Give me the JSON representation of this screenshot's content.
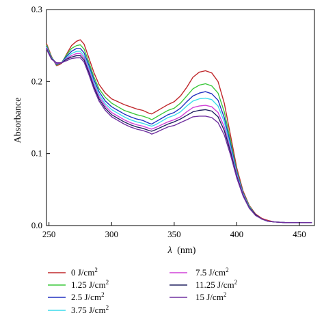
{
  "chart_data": {
    "type": "line",
    "title": "",
    "xlabel_symbol": "λ",
    "xlabel_unit": "(nm)",
    "ylabel": "Absorbance",
    "xlim": [
      248,
      462
    ],
    "ylim": [
      0,
      0.3
    ],
    "xticks": [
      250,
      300,
      350,
      400,
      450
    ],
    "yticks": [
      0.0,
      0.1,
      0.2,
      0.3
    ],
    "ytick_labels": [
      "0.0",
      "0.1",
      "0.2",
      "0.3"
    ],
    "grid": false,
    "legend_position": "bottom",
    "x": [
      248,
      252,
      256,
      260,
      264,
      268,
      272,
      275,
      278,
      282,
      286,
      290,
      295,
      300,
      305,
      310,
      315,
      320,
      325,
      330,
      332,
      335,
      340,
      345,
      350,
      355,
      360,
      365,
      370,
      375,
      380,
      385,
      390,
      395,
      400,
      405,
      410,
      415,
      420,
      425,
      430,
      440,
      450,
      460
    ],
    "series": [
      {
        "name_value": "0 J/cm",
        "name_sup": "2",
        "color": "#c0282c",
        "values": [
          0.253,
          0.235,
          0.222,
          0.225,
          0.238,
          0.25,
          0.256,
          0.258,
          0.252,
          0.232,
          0.212,
          0.196,
          0.184,
          0.176,
          0.172,
          0.168,
          0.165,
          0.162,
          0.16,
          0.156,
          0.155,
          0.158,
          0.163,
          0.168,
          0.172,
          0.18,
          0.192,
          0.206,
          0.213,
          0.215,
          0.212,
          0.2,
          0.17,
          0.125,
          0.08,
          0.048,
          0.028,
          0.016,
          0.01,
          0.007,
          0.005,
          0.004,
          0.004,
          0.004
        ]
      },
      {
        "name_value": "1.25 J/cm",
        "name_sup": "2",
        "color": "#3cc83c",
        "values": [
          0.251,
          0.234,
          0.223,
          0.226,
          0.237,
          0.246,
          0.25,
          0.251,
          0.245,
          0.226,
          0.206,
          0.19,
          0.178,
          0.17,
          0.165,
          0.16,
          0.157,
          0.154,
          0.152,
          0.149,
          0.147,
          0.15,
          0.155,
          0.16,
          0.163,
          0.17,
          0.18,
          0.19,
          0.195,
          0.197,
          0.194,
          0.184,
          0.158,
          0.118,
          0.076,
          0.046,
          0.027,
          0.015,
          0.009,
          0.006,
          0.005,
          0.004,
          0.004,
          0.004
        ]
      },
      {
        "name_value": "2.5 J/cm",
        "name_sup": "2",
        "color": "#2030c0",
        "values": [
          0.249,
          0.233,
          0.224,
          0.226,
          0.235,
          0.242,
          0.246,
          0.246,
          0.24,
          0.222,
          0.202,
          0.186,
          0.173,
          0.165,
          0.16,
          0.155,
          0.151,
          0.148,
          0.146,
          0.142,
          0.141,
          0.144,
          0.149,
          0.154,
          0.157,
          0.163,
          0.172,
          0.18,
          0.184,
          0.186,
          0.183,
          0.174,
          0.15,
          0.113,
          0.074,
          0.045,
          0.026,
          0.015,
          0.009,
          0.006,
          0.005,
          0.004,
          0.004,
          0.004
        ]
      },
      {
        "name_value": "3.75 J/cm",
        "name_sup": "2",
        "color": "#3cdcec",
        "values": [
          0.248,
          0.233,
          0.225,
          0.226,
          0.233,
          0.239,
          0.242,
          0.242,
          0.236,
          0.218,
          0.198,
          0.182,
          0.169,
          0.161,
          0.156,
          0.151,
          0.147,
          0.144,
          0.142,
          0.139,
          0.138,
          0.14,
          0.145,
          0.15,
          0.153,
          0.158,
          0.166,
          0.173,
          0.176,
          0.177,
          0.175,
          0.166,
          0.144,
          0.109,
          0.072,
          0.044,
          0.026,
          0.015,
          0.009,
          0.006,
          0.005,
          0.004,
          0.004,
          0.004
        ]
      },
      {
        "name_value": "7.5 J/cm",
        "name_sup": "2",
        "color": "#d040d8",
        "values": [
          0.247,
          0.232,
          0.225,
          0.226,
          0.232,
          0.236,
          0.239,
          0.239,
          0.233,
          0.215,
          0.195,
          0.179,
          0.166,
          0.157,
          0.152,
          0.147,
          0.143,
          0.14,
          0.138,
          0.135,
          0.134,
          0.136,
          0.14,
          0.144,
          0.147,
          0.151,
          0.158,
          0.164,
          0.166,
          0.167,
          0.165,
          0.157,
          0.137,
          0.105,
          0.07,
          0.043,
          0.025,
          0.015,
          0.009,
          0.006,
          0.005,
          0.004,
          0.004,
          0.004
        ]
      },
      {
        "name_value": "11.25 J/cm",
        "name_sup": "2",
        "color": "#202060",
        "values": [
          0.246,
          0.232,
          0.226,
          0.226,
          0.231,
          0.234,
          0.236,
          0.236,
          0.23,
          0.212,
          0.192,
          0.176,
          0.163,
          0.154,
          0.149,
          0.144,
          0.14,
          0.137,
          0.135,
          0.132,
          0.131,
          0.133,
          0.137,
          0.141,
          0.144,
          0.148,
          0.153,
          0.158,
          0.16,
          0.161,
          0.159,
          0.151,
          0.132,
          0.102,
          0.068,
          0.042,
          0.025,
          0.015,
          0.009,
          0.006,
          0.005,
          0.004,
          0.004,
          0.004
        ]
      },
      {
        "name_value": "15 J/cm",
        "name_sup": "2",
        "color": "#7030a0",
        "values": [
          0.245,
          0.231,
          0.226,
          0.226,
          0.229,
          0.232,
          0.233,
          0.233,
          0.227,
          0.209,
          0.189,
          0.173,
          0.16,
          0.151,
          0.146,
          0.141,
          0.137,
          0.134,
          0.132,
          0.129,
          0.127,
          0.129,
          0.133,
          0.137,
          0.139,
          0.143,
          0.147,
          0.151,
          0.152,
          0.152,
          0.15,
          0.143,
          0.126,
          0.098,
          0.066,
          0.041,
          0.024,
          0.014,
          0.009,
          0.006,
          0.005,
          0.004,
          0.004,
          0.004
        ]
      }
    ]
  }
}
